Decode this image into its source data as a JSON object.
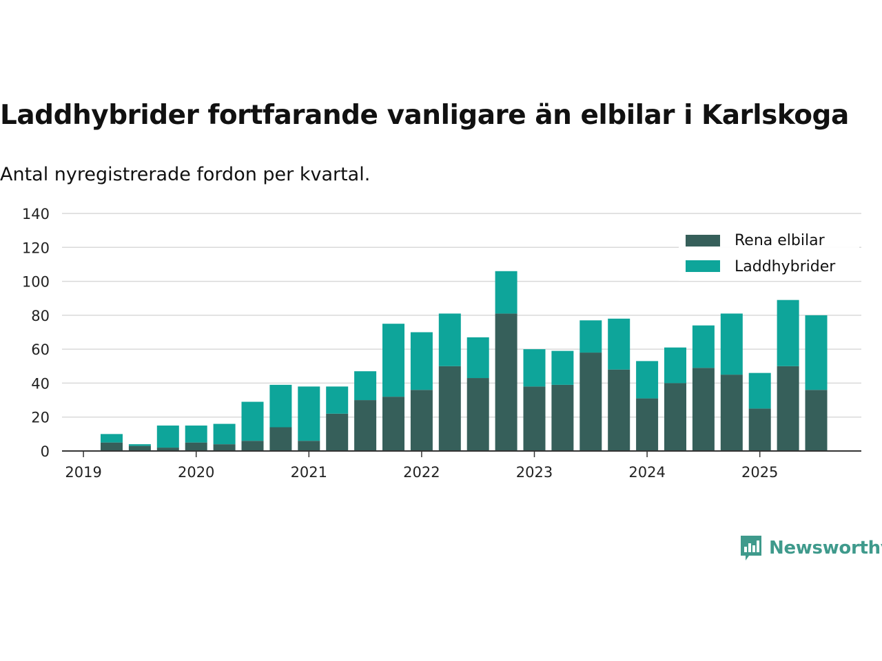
{
  "title": "Laddhybrider fortfarande vanligare än elbilar i Karlskoga",
  "subtitle": "Antal nyregistrerade fordon per kvartal.",
  "brand": {
    "name": "Newsworthy"
  },
  "colors": {
    "rena": "#365f5a",
    "ladd": "#0ea59a",
    "grid": "#d9d9d9",
    "axis": "#333333",
    "brand": "#3f9a8c"
  },
  "chart_data": {
    "type": "bar",
    "stacked": true,
    "title": "Laddhybrider fortfarande vanligare än elbilar i Karlskoga",
    "subtitle": "Antal nyregistrerade fordon per kvartal.",
    "ylim": [
      0,
      140
    ],
    "yticks": [
      0,
      20,
      40,
      60,
      80,
      100,
      120,
      140
    ],
    "xticks": [
      "2019",
      "2020",
      "2021",
      "2022",
      "2023",
      "2024",
      "2025"
    ],
    "grid": true,
    "legend_position": "top-right",
    "categories": [
      "2019 Q2",
      "2019 Q3",
      "2019 Q4",
      "2020 Q1",
      "2020 Q2",
      "2020 Q3",
      "2020 Q4",
      "2021 Q1",
      "2021 Q2",
      "2021 Q3",
      "2021 Q4",
      "2022 Q1",
      "2022 Q2",
      "2022 Q3",
      "2022 Q4",
      "2023 Q1",
      "2023 Q2",
      "2023 Q3",
      "2023 Q4",
      "2024 Q1",
      "2024 Q2",
      "2024 Q3",
      "2024 Q4",
      "2025 Q1",
      "2025 Q2",
      "2025 Q3"
    ],
    "series": [
      {
        "name": "Rena elbilar",
        "values": [
          5,
          3,
          2,
          5,
          4,
          6,
          14,
          6,
          22,
          30,
          32,
          36,
          50,
          43,
          81,
          38,
          39,
          58,
          48,
          31,
          40,
          49,
          45,
          25,
          50,
          36
        ]
      },
      {
        "name": "Laddhybrider",
        "values": [
          5,
          1,
          13,
          10,
          12,
          23,
          25,
          32,
          16,
          17,
          43,
          34,
          31,
          24,
          25,
          22,
          20,
          19,
          30,
          22,
          21,
          25,
          36,
          21,
          39,
          44
        ]
      }
    ]
  }
}
